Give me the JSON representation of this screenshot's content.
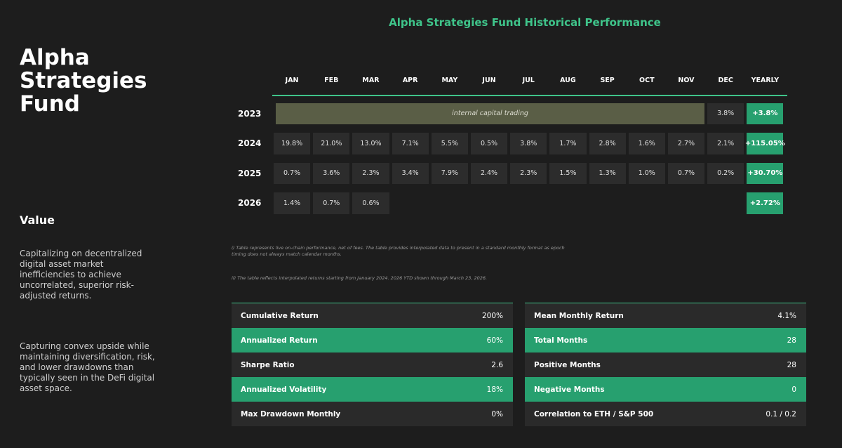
{
  "sidebar": {
    "fund_title": "Alpha Strategies Fund",
    "value_heading": "Value",
    "paragraph1": "Capitalizing on decentralized digital asset market inefficiencies to achieve uncorrelated, superior risk-adjusted returns.",
    "paragraph2": "Capturing convex upside while maintaining diversification, risk, and lower drawdowns than typically seen in the DeFi digital asset space."
  },
  "main_title": "Alpha Strategies Fund Historical Performance",
  "table": {
    "columns": [
      "JAN",
      "FEB",
      "MAR",
      "APR",
      "MAY",
      "JUN",
      "JUL",
      "AUG",
      "SEP",
      "OCT",
      "NOV",
      "DEC",
      "YEARLY"
    ],
    "rows": [
      {
        "year": "2023",
        "internal_label": "internal capital trading",
        "dec": "3.8%",
        "yearly": "+3.8%"
      },
      {
        "year": "2024",
        "months": [
          "19.8%",
          "21.0%",
          "13.0%",
          "7.1%",
          "5.5%",
          "0.5%",
          "3.8%",
          "1.7%",
          "2.8%",
          "1.6%",
          "2.7%",
          "2.1%"
        ],
        "yearly": "+115.05%"
      },
      {
        "year": "2025",
        "months": [
          "0.7%",
          "3.6%",
          "2.3%",
          "3.4%",
          "7.9%",
          "2.4%",
          "2.3%",
          "1.5%",
          "1.3%",
          "1.0%",
          "0.7%",
          "0.2%"
        ],
        "yearly": "+30.70%"
      },
      {
        "year": "2026",
        "months": [
          "1.4%",
          "0.7%",
          "0.6%",
          "",
          "",
          "",
          "",
          "",
          "",
          "",
          "",
          ""
        ],
        "yearly": "+2.72%"
      }
    ]
  },
  "notes": {
    "note1": "i) Table represents live on-chain performance, net of fees. The table provides interpolated data to present in a standard monthly format as epoch timing does not always match calendar months.",
    "note2": "ii) The table reflects interpolated returns starting from January 2024. 2026 YTD shown through March 23, 2026."
  },
  "stats_left": [
    {
      "label": "Cumulative Return",
      "value": "200%"
    },
    {
      "label": "Annualized Return",
      "value": "60%"
    },
    {
      "label": "Sharpe Ratio",
      "value": "2.6"
    },
    {
      "label": "Annualized Volatility",
      "value": "18%"
    },
    {
      "label": "Max Drawdown Monthly",
      "value": "0%"
    }
  ],
  "stats_right": [
    {
      "label": "Mean Monthly Return",
      "value": "4.1%"
    },
    {
      "label": "Total Months",
      "value": "28"
    },
    {
      "label": "Positive Months",
      "value": "28"
    },
    {
      "label": "Negative Months",
      "value": "0"
    },
    {
      "label": "Correlation to ETH / S&P 500",
      "value": "0.1 / 0.2"
    }
  ],
  "colors": {
    "accent": "#3fc48a",
    "positive_fill": "#27a06f",
    "internal_fill": "#5a5e46",
    "background": "#1d1d1d"
  }
}
